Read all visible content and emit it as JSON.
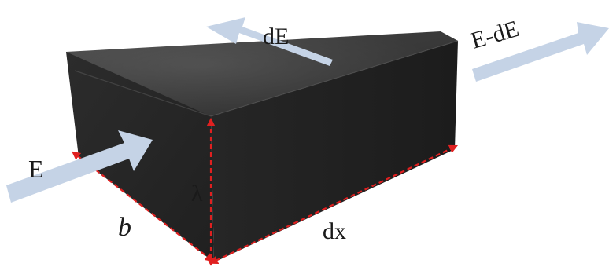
{
  "labels": {
    "energy_in": "E",
    "energy_absorbed": "dE",
    "energy_out": "E-dE",
    "width": "b",
    "height": "λ",
    "thickness": "dx"
  },
  "colors": {
    "background": "#ffffff",
    "block_top": "#3a3a3a",
    "block_front": "#272727",
    "block_side": "#1d1d1d",
    "arrow_fill": "#c5d3e6",
    "dimension_line": "#e02020",
    "label_text": "#1a1a1a"
  }
}
